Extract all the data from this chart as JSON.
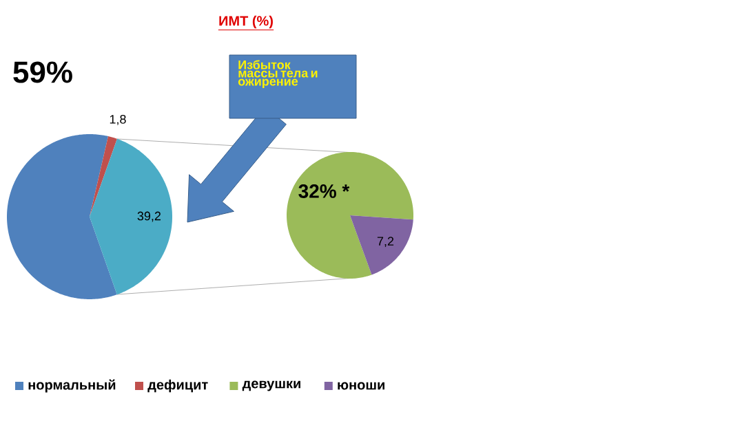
{
  "chart_data": [
    {
      "type": "pie",
      "title": "ИМТ (%)",
      "categories": [
        "нормальный",
        "дефицит",
        null
      ],
      "values": [
        59,
        1.8,
        39.2
      ],
      "colors": [
        "#4f81bd",
        "#c0504d",
        "#4bacc6"
      ],
      "value_labels": [
        "59%",
        "1,8",
        "39,2"
      ],
      "legend": "bottom",
      "annotations": [
        "Избыток массы тела и ожирение"
      ]
    },
    {
      "type": "pie",
      "categories": [
        "девушки",
        "юноши"
      ],
      "values": [
        32,
        7.2
      ],
      "colors": [
        "#9bbb59",
        "#8064a2"
      ],
      "value_labels": [
        "32% *",
        "7,2"
      ],
      "legend": "bottom"
    }
  ]
}
